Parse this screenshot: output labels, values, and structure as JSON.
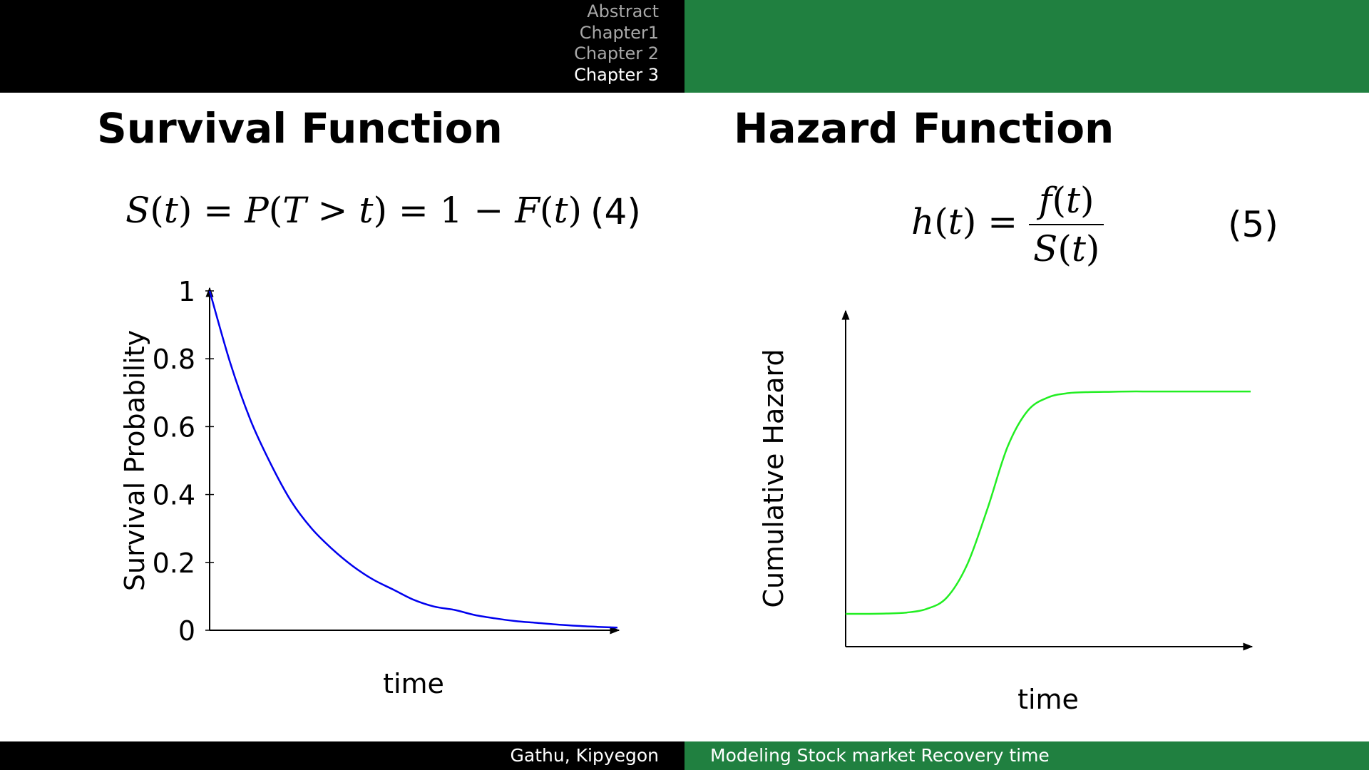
{
  "nav": {
    "items": [
      "Abstract",
      "Chapter1",
      "Chapter 2",
      "Chapter 3"
    ],
    "active_index": 3
  },
  "footer": {
    "authors": "Gathu, Kipyegon",
    "title": "Modeling Stock market Recovery time"
  },
  "colors": {
    "header_dark": "#000000",
    "theme_green": "#208040",
    "survival_curve": "#0000ee",
    "hazard_curve": "#22ee22"
  },
  "left": {
    "title": "Survival Function",
    "equation": {
      "s": "S",
      "t": "t",
      "p": "P",
      "T": "T",
      "one": "1",
      "f": "F",
      "gt": ">",
      "eq": "=",
      "minus": "−",
      "lp": "(",
      "rp": ")"
    },
    "equation_number": "(4)"
  },
  "right": {
    "title": "Hazard Function",
    "equation": {
      "h": "h",
      "t": "t",
      "f": "f",
      "s": "S",
      "eq": "=",
      "lp": "(",
      "rp": ")"
    },
    "equation_number": "(5)"
  },
  "chart_data": [
    {
      "type": "line",
      "xlabel": "time",
      "ylabel": "Survival Probability",
      "ylim": [
        0,
        1
      ],
      "yticks": [
        "0",
        "0.2",
        "0.4",
        "0.6",
        "0.8",
        "1"
      ],
      "x_tick_labels": [],
      "grid": false,
      "series": [
        {
          "x": [
            0,
            0.05,
            0.1,
            0.15,
            0.2,
            0.25,
            0.3,
            0.35,
            0.4,
            0.45,
            0.5,
            0.55,
            0.6,
            0.65,
            0.7,
            0.75,
            0.8,
            0.85,
            0.9,
            0.95,
            1.0
          ],
          "values": [
            1.0,
            0.79,
            0.62,
            0.49,
            0.38,
            0.3,
            0.24,
            0.19,
            0.15,
            0.12,
            0.09,
            0.07,
            0.06,
            0.045,
            0.035,
            0.027,
            0.022,
            0.017,
            0.013,
            0.01,
            0.008
          ]
        }
      ]
    },
    {
      "type": "line",
      "xlabel": "time",
      "ylabel": "Cumulative Hazard",
      "x_tick_labels": [],
      "y_tick_labels": [],
      "grid": false,
      "series": [
        {
          "x": [
            0,
            0.05,
            0.1,
            0.15,
            0.2,
            0.25,
            0.3,
            0.35,
            0.4,
            0.45,
            0.5,
            0.55,
            0.6,
            0.65,
            0.7,
            0.75,
            0.8,
            0.85,
            0.9,
            0.95,
            1.0
          ],
          "values": [
            0.1,
            0.1,
            0.101,
            0.104,
            0.115,
            0.15,
            0.25,
            0.42,
            0.61,
            0.72,
            0.76,
            0.773,
            0.776,
            0.777,
            0.778,
            0.778,
            0.778,
            0.778,
            0.778,
            0.778,
            0.778
          ]
        }
      ]
    }
  ]
}
